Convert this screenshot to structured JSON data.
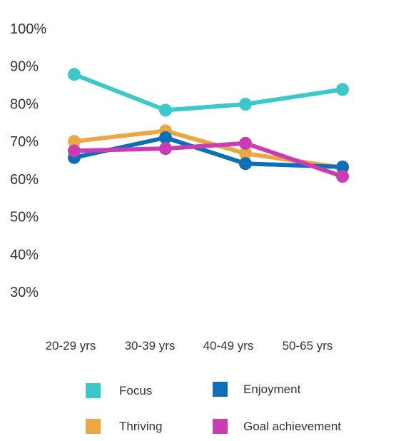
{
  "chart_data": {
    "type": "line",
    "categories": [
      "20-29 yrs",
      "30-39 yrs",
      "40-49 yrs",
      "50-65 yrs"
    ],
    "y_ticks": [
      "100%",
      "90%",
      "80%",
      "70%",
      "60%",
      "50%",
      "40%",
      "30%"
    ],
    "ylim": [
      30,
      100
    ],
    "grid": false,
    "legend_position": "bottom",
    "series": [
      {
        "name": "Focus",
        "color": "#3cc8c8",
        "values": [
          87.8,
          78.3,
          79.9,
          83.8
        ]
      },
      {
        "name": "Thriving",
        "color": "#eba744",
        "values": [
          70.0,
          72.8,
          66.8,
          63.0
        ]
      },
      {
        "name": "Enjoyment",
        "color": "#0e6eb8",
        "values": [
          65.7,
          71.0,
          64.1,
          63.2
        ]
      },
      {
        "name": "Goal achievement",
        "color": "#c83cb4",
        "values": [
          67.5,
          68.1,
          69.5,
          60.7
        ]
      }
    ]
  }
}
